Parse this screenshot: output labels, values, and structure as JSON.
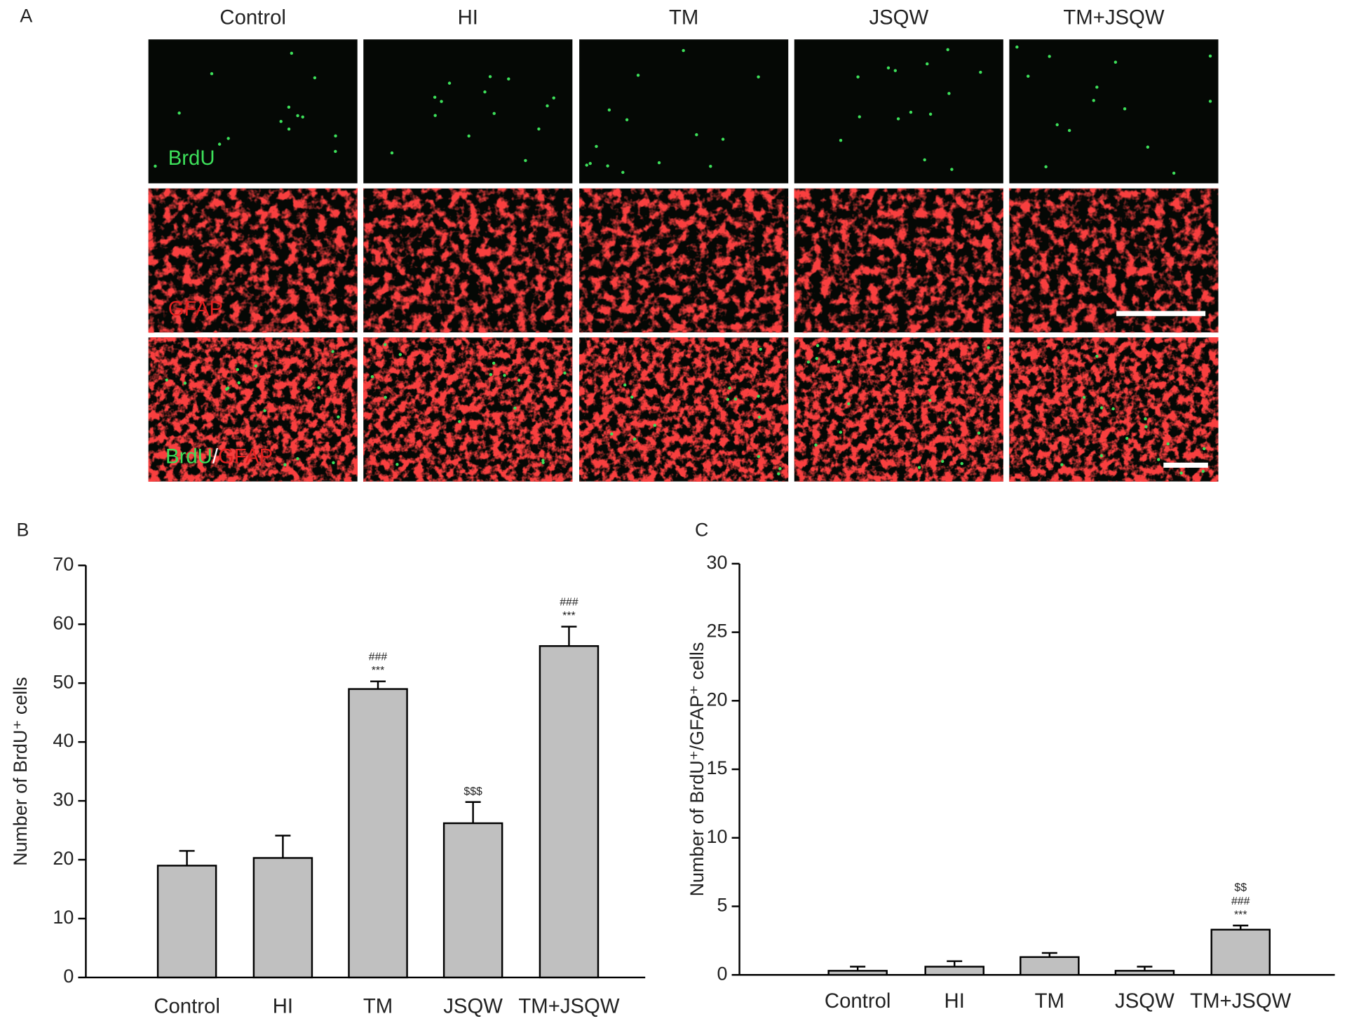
{
  "panel_labels": [
    "A",
    "B",
    "C"
  ],
  "micrographs": {
    "columns": [
      "Control",
      "HI",
      "TM",
      "JSQW",
      "TM+JSQW"
    ],
    "row_labels": [
      "BrdU",
      "GFAP",
      [
        "BrdU",
        "/",
        "GFAP"
      ]
    ]
  },
  "chart_data": [
    {
      "type": "bar",
      "y_label": "Number of BrdU⁺ cells",
      "categories": [
        "Control",
        "HI",
        "TM",
        "JSQW",
        "TM+JSQW"
      ],
      "values": [
        19,
        20.3,
        49,
        26.2,
        56.3
      ],
      "errors": [
        2.5,
        3.8,
        1.3,
        3.6,
        3.3
      ],
      "annotations": [
        null,
        null,
        [
          "###",
          "***"
        ],
        [
          "$$$"
        ],
        [
          "###",
          "***"
        ]
      ],
      "color": "#c0c0c0",
      "ylim": [
        0,
        70
      ],
      "yticks": [
        0,
        10,
        20,
        30,
        40,
        50,
        60,
        70
      ],
      "grid": false
    },
    {
      "type": "bar",
      "y_label": "Number of BrdU⁺/GFAP⁺ cells",
      "categories": [
        "Control",
        "HI",
        "TM",
        "JSQW",
        "TM+JSQW"
      ],
      "values": [
        0.3,
        0.6,
        1.3,
        0.3,
        3.3
      ],
      "errors": [
        0.3,
        0.4,
        0.3,
        0.3,
        0.3
      ],
      "annotations": [
        null,
        null,
        null,
        null,
        [
          "$$",
          "###",
          "***"
        ]
      ],
      "color": "#c0c0c0",
      "ylim": [
        0,
        30
      ],
      "yticks": [
        0,
        5,
        10,
        15,
        20,
        25,
        30
      ],
      "grid": false
    }
  ]
}
